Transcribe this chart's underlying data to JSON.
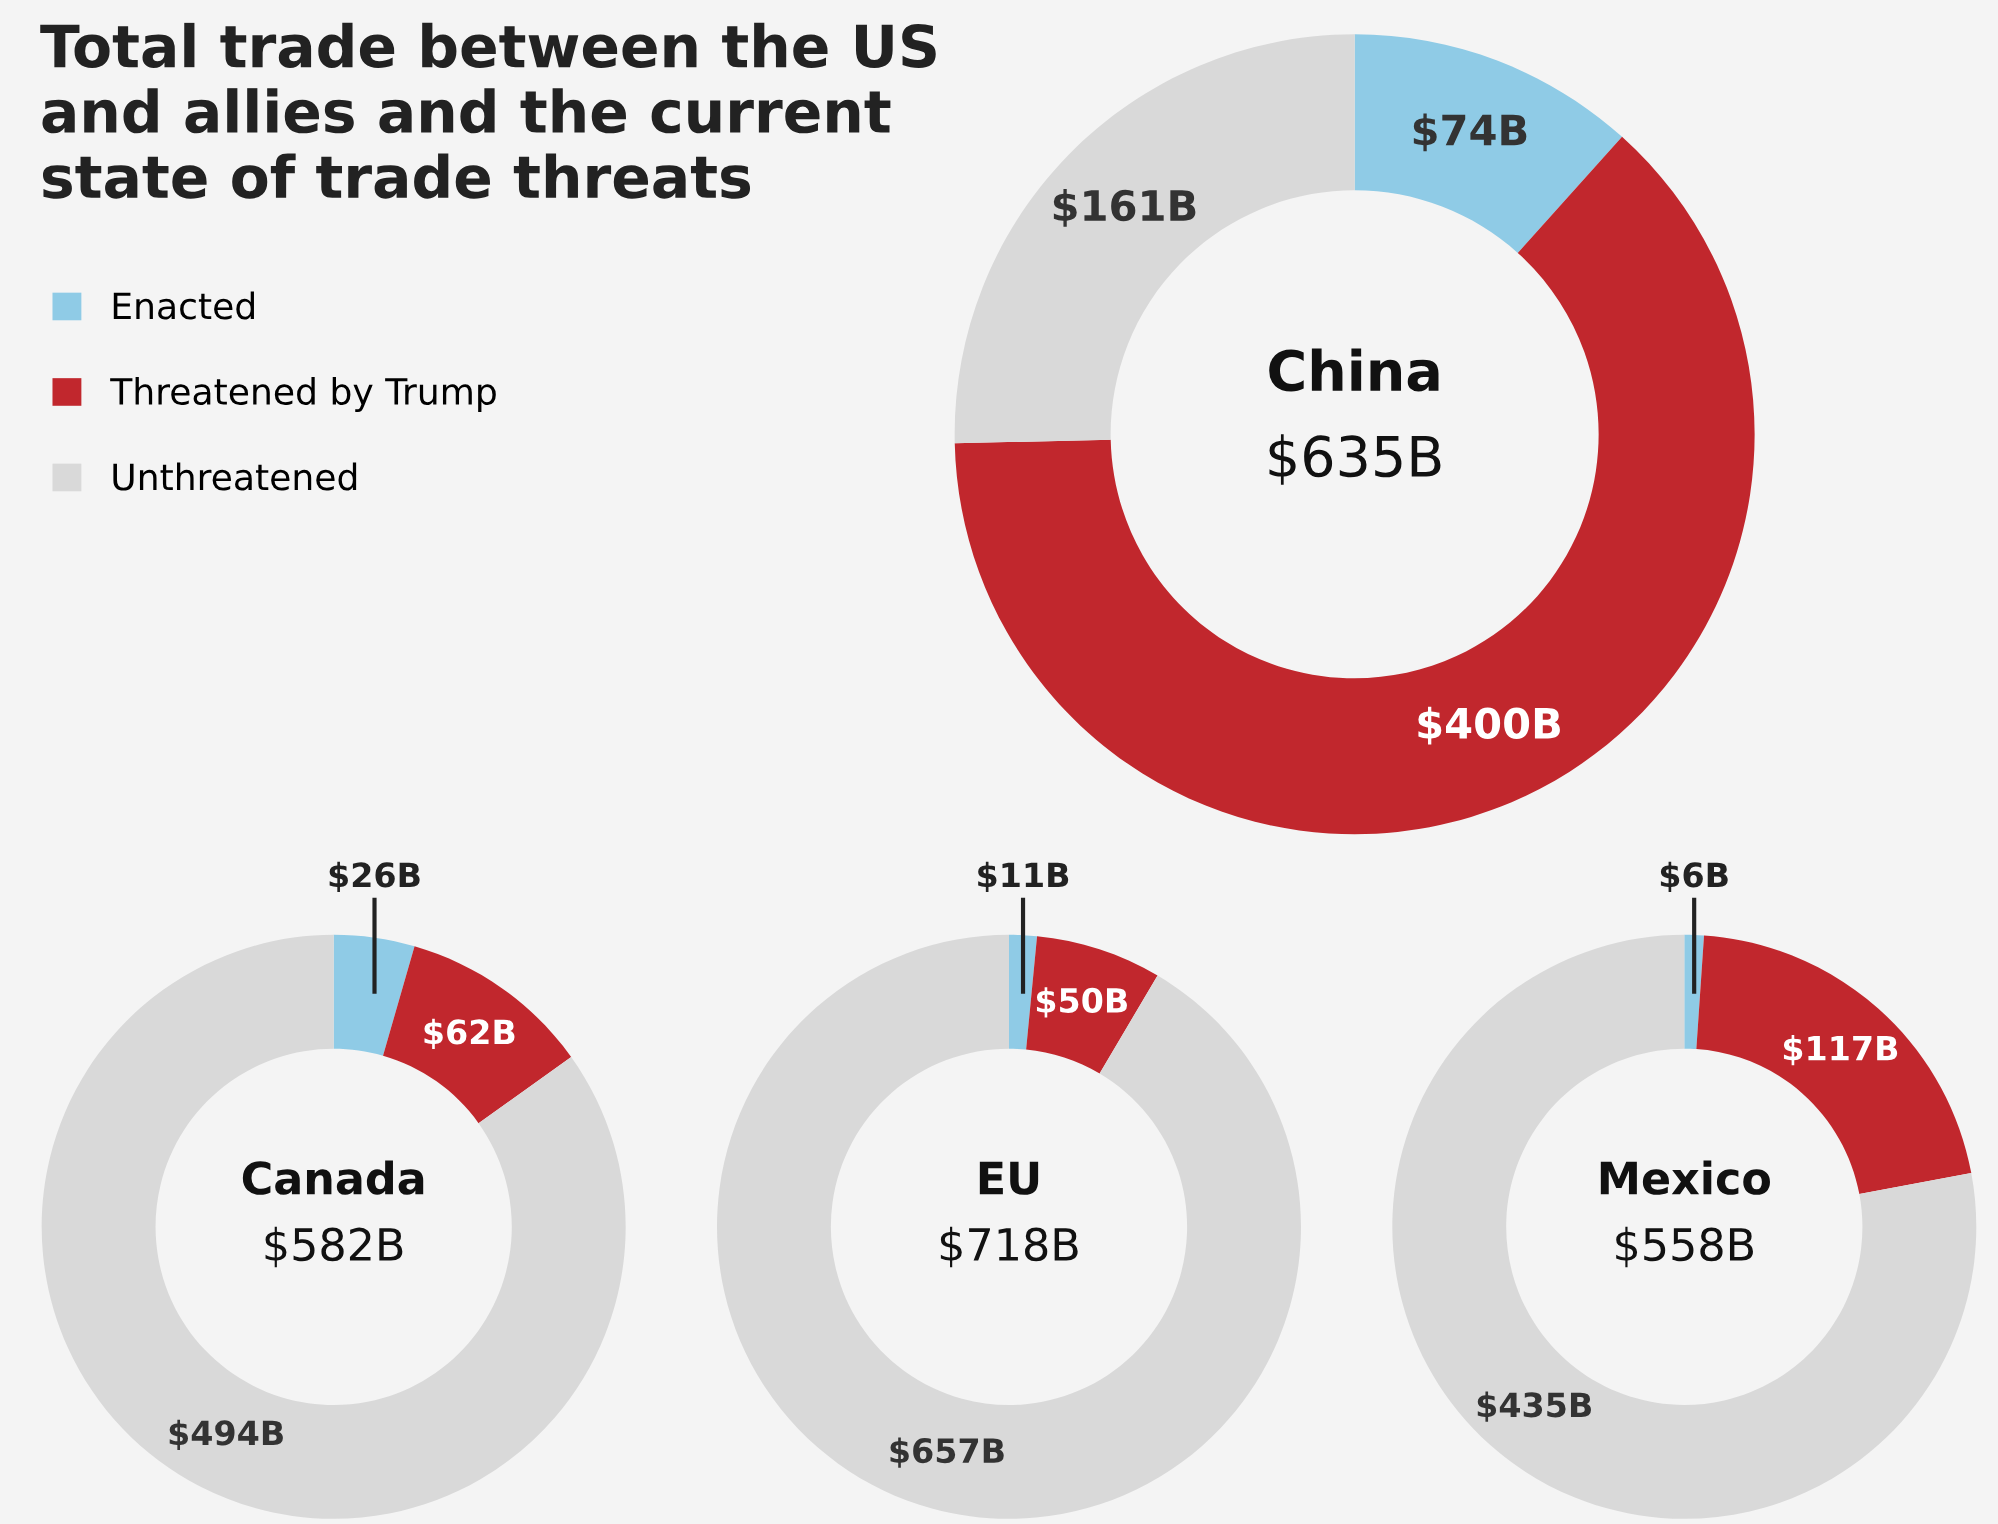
{
  "chart_data": [
    {
      "type": "donut",
      "title": "China",
      "subtitle": "$635B",
      "annotations": [
        "Total trade between the US\nand allies and the current\nstate of trade threats"
      ],
      "categories": [
        "Enacted",
        "Threatened by Trump",
        "Unthreatened"
      ],
      "values": [
        74,
        400,
        161
      ],
      "colors": [
        "#8fcbe6",
        "#c1272d",
        "#d9d9d9"
      ],
      "value_labels": [
        "$74B",
        "$400B",
        "$161B"
      ],
      "legend": "left"
    },
    {
      "type": "donut",
      "title": "Canada",
      "subtitle": "$582B",
      "categories": [
        null,
        null,
        null
      ],
      "values": [
        26,
        62,
        494
      ],
      "colors": [
        "#8fcbe6",
        "#c1272d",
        "#d9d9d9"
      ],
      "value_labels": [
        "$26B",
        "$62B",
        "$494B"
      ]
    },
    {
      "type": "donut",
      "title": "EU",
      "subtitle": "$718B",
      "categories": [
        null,
        null,
        null
      ],
      "values": [
        11,
        50,
        657
      ],
      "colors": [
        "#8fcbe6",
        "#c1272d",
        "#d9d9d9"
      ],
      "value_labels": [
        "$11B",
        "$50B",
        "$657B"
      ]
    },
    {
      "type": "donut",
      "title": "Mexico",
      "subtitle": "$558B",
      "categories": [
        null,
        null,
        null
      ],
      "values": [
        6,
        117,
        435
      ],
      "colors": [
        "#8fcbe6",
        "#c1272d",
        "#d9d9d9"
      ],
      "value_labels": [
        "$6B",
        "$117B",
        "$435B"
      ]
    }
  ]
}
